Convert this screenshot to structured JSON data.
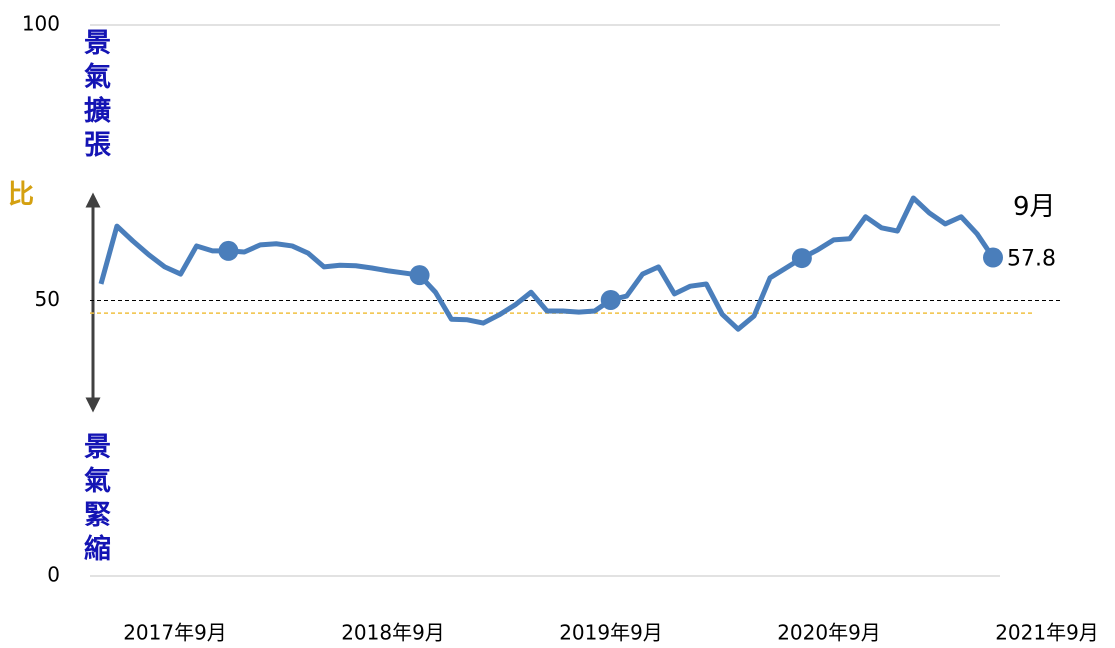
{
  "chart_data": {
    "type": "line",
    "categories": [
      null,
      null,
      null,
      null,
      null,
      null,
      null,
      null,
      "2017年9月",
      null,
      null,
      null,
      null,
      null,
      null,
      null,
      null,
      null,
      null,
      null,
      "2018年9月",
      null,
      null,
      null,
      null,
      null,
      null,
      null,
      null,
      null,
      null,
      null,
      "2019年9月",
      null,
      null,
      null,
      null,
      null,
      null,
      null,
      null,
      null,
      null,
      null,
      "2020年9月",
      null,
      null,
      null,
      null,
      null,
      null,
      null,
      null,
      null,
      null,
      null,
      "2021年9月"
    ],
    "series": [
      {
        "name": null,
        "color": "#4a7ebb",
        "values": [
          53.0,
          63.5,
          60.8,
          58.3,
          56.1,
          54.8,
          59.9,
          59.0,
          59.0,
          58.8,
          60.1,
          60.3,
          59.9,
          58.6,
          56.1,
          56.4,
          56.3,
          55.9,
          55.4,
          55.0,
          54.6,
          51.5,
          46.6,
          46.5,
          45.9,
          47.4,
          49.2,
          51.5,
          48.1,
          48.1,
          47.9,
          48.1,
          50.1,
          50.8,
          54.8,
          56.1,
          51.2,
          52.6,
          53.0,
          47.5,
          44.8,
          47.2,
          54.1,
          55.9,
          57.7,
          59.2,
          61.0,
          61.2,
          65.2,
          63.2,
          62.6,
          68.6,
          65.9,
          63.9,
          65.2,
          62.1,
          57.8
        ]
      }
    ],
    "ylim": [
      0,
      100
    ],
    "yticks": [
      0,
      50,
      100
    ],
    "threshold": 50,
    "reference_line": {
      "value": 47.7,
      "color": "#f0c040"
    },
    "annotation": "9月",
    "expansion_label": "景氣擴張",
    "contraction_label": "景氣緊縮",
    "side_label": "比"
  }
}
